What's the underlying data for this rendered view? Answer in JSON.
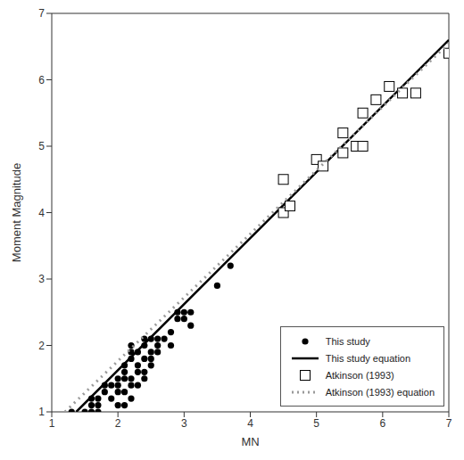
{
  "chart_data": {
    "type": "scatter",
    "xlabel": "MN",
    "ylabel": "Moment Magnitude",
    "xlim": [
      1,
      7
    ],
    "ylim": [
      1,
      7
    ],
    "xticks": [
      1,
      2,
      3,
      4,
      5,
      6,
      7
    ],
    "yticks": [
      1,
      2,
      3,
      4,
      5,
      6,
      7
    ],
    "grid": false,
    "legend": "lower right",
    "series": [
      {
        "name": "This study",
        "type": "scatter",
        "marker": "circle",
        "color": "#000000",
        "x": [
          1.3,
          1.5,
          1.6,
          1.6,
          1.7,
          1.7,
          1.6,
          1.7,
          1.8,
          1.8,
          1.9,
          1.9,
          2.0,
          2.0,
          2.0,
          2.0,
          2.1,
          2.1,
          2.1,
          2.1,
          2.1,
          2.2,
          2.2,
          2.2,
          2.2,
          2.2,
          2.2,
          2.3,
          2.3,
          2.3,
          2.3,
          2.4,
          2.4,
          2.4,
          2.4,
          2.4,
          2.5,
          2.5,
          2.5,
          2.5,
          2.6,
          2.6,
          2.6,
          2.7,
          2.8,
          2.8,
          2.9,
          2.9,
          3.0,
          3.0,
          3.1,
          3.1,
          3.5,
          3.7
        ],
        "values": [
          1.0,
          1.0,
          1.0,
          1.1,
          1.1,
          1.0,
          1.2,
          1.2,
          1.3,
          1.4,
          1.4,
          1.2,
          1.5,
          1.4,
          1.3,
          1.1,
          1.1,
          1.6,
          1.7,
          1.5,
          1.3,
          1.5,
          1.8,
          1.9,
          2.0,
          1.4,
          1.2,
          1.6,
          1.7,
          1.9,
          1.4,
          1.5,
          1.8,
          2.0,
          2.1,
          1.6,
          1.7,
          1.9,
          2.1,
          1.8,
          2.0,
          2.1,
          1.9,
          2.1,
          2.0,
          2.2,
          2.4,
          2.5,
          2.4,
          2.5,
          2.5,
          2.3,
          2.9,
          3.2
        ]
      },
      {
        "name": "This study equation",
        "type": "line",
        "line_style": "solid",
        "color": "#000000",
        "x": [
          1.37,
          7.0
        ],
        "values": [
          1.0,
          6.6
        ]
      },
      {
        "name": "Atkinson (1993)",
        "type": "scatter",
        "marker": "square",
        "color": "#000000",
        "x": [
          4.5,
          4.5,
          4.6,
          5.0,
          5.1,
          5.4,
          5.4,
          5.6,
          5.7,
          5.7,
          5.9,
          6.1,
          6.3,
          6.5,
          7.0
        ],
        "values": [
          4.0,
          4.5,
          4.1,
          4.8,
          4.7,
          4.9,
          5.2,
          5.0,
          5.0,
          5.5,
          5.7,
          5.9,
          5.8,
          5.8,
          6.4
        ]
      },
      {
        "name": "Atkinson (1993) equation",
        "type": "line",
        "line_style": "dotted",
        "color": "#9a9a9a",
        "x": [
          1.2,
          7.0
        ],
        "values": [
          1.0,
          6.55
        ]
      }
    ]
  }
}
